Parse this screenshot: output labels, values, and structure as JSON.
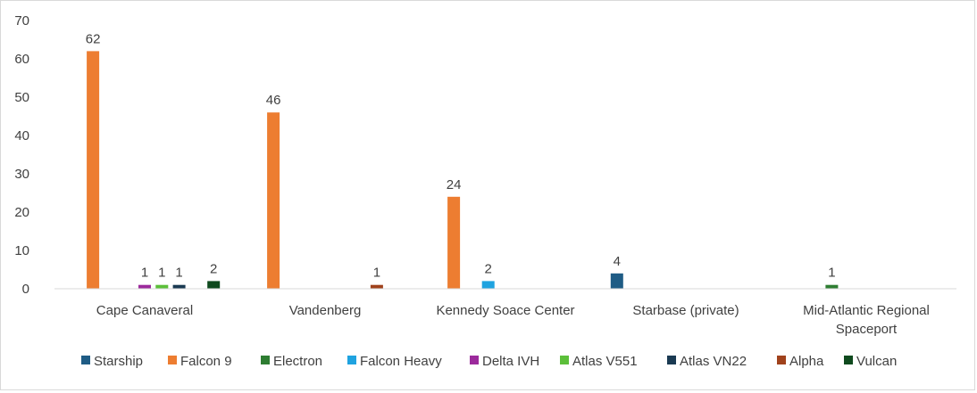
{
  "chart_data": {
    "type": "bar",
    "categories": [
      "Cape Canaveral",
      "Vandenberg",
      "Kennedy Soace Center",
      "Starbase (private)",
      "Mid-Atlantic Regional Spaceport"
    ],
    "category_lines": [
      [
        "Cape Canaveral"
      ],
      [
        "Vandenberg"
      ],
      [
        "Kennedy Soace Center"
      ],
      [
        "Starbase (private)"
      ],
      [
        "Mid-Atlantic Regional",
        "Spaceport"
      ]
    ],
    "series": [
      {
        "name": "Starship",
        "color": "#1f5c85",
        "values": [
          null,
          null,
          null,
          4,
          null
        ]
      },
      {
        "name": "Falcon  9",
        "color": "#ed7d31",
        "values": [
          62,
          46,
          24,
          null,
          null
        ]
      },
      {
        "name": "Electron",
        "color": "#2e7d32",
        "values": [
          null,
          null,
          null,
          null,
          1
        ]
      },
      {
        "name": "Falcon Heavy",
        "color": "#1fa3e0",
        "values": [
          null,
          null,
          2,
          null,
          null
        ]
      },
      {
        "name": "Delta IVH",
        "color": "#9c2a9c",
        "values": [
          1,
          null,
          null,
          null,
          null
        ]
      },
      {
        "name": "Atlas V551",
        "color": "#5cbf3a",
        "values": [
          1,
          null,
          null,
          null,
          null
        ]
      },
      {
        "name": "Atlas VN22",
        "color": "#1a3a52",
        "values": [
          1,
          null,
          null,
          null,
          null
        ]
      },
      {
        "name": "Alpha",
        "color": "#a0421c",
        "values": [
          null,
          1,
          null,
          null,
          null
        ]
      },
      {
        "name": "Vulcan",
        "color": "#0f4a1e",
        "values": [
          2,
          null,
          null,
          null,
          null
        ]
      }
    ],
    "title": "",
    "xlabel": "",
    "ylabel": "",
    "ylim": [
      0,
      70
    ],
    "yticks": [
      0,
      10,
      20,
      30,
      40,
      50,
      60,
      70
    ],
    "grid": false,
    "legend_position": "bottom"
  }
}
